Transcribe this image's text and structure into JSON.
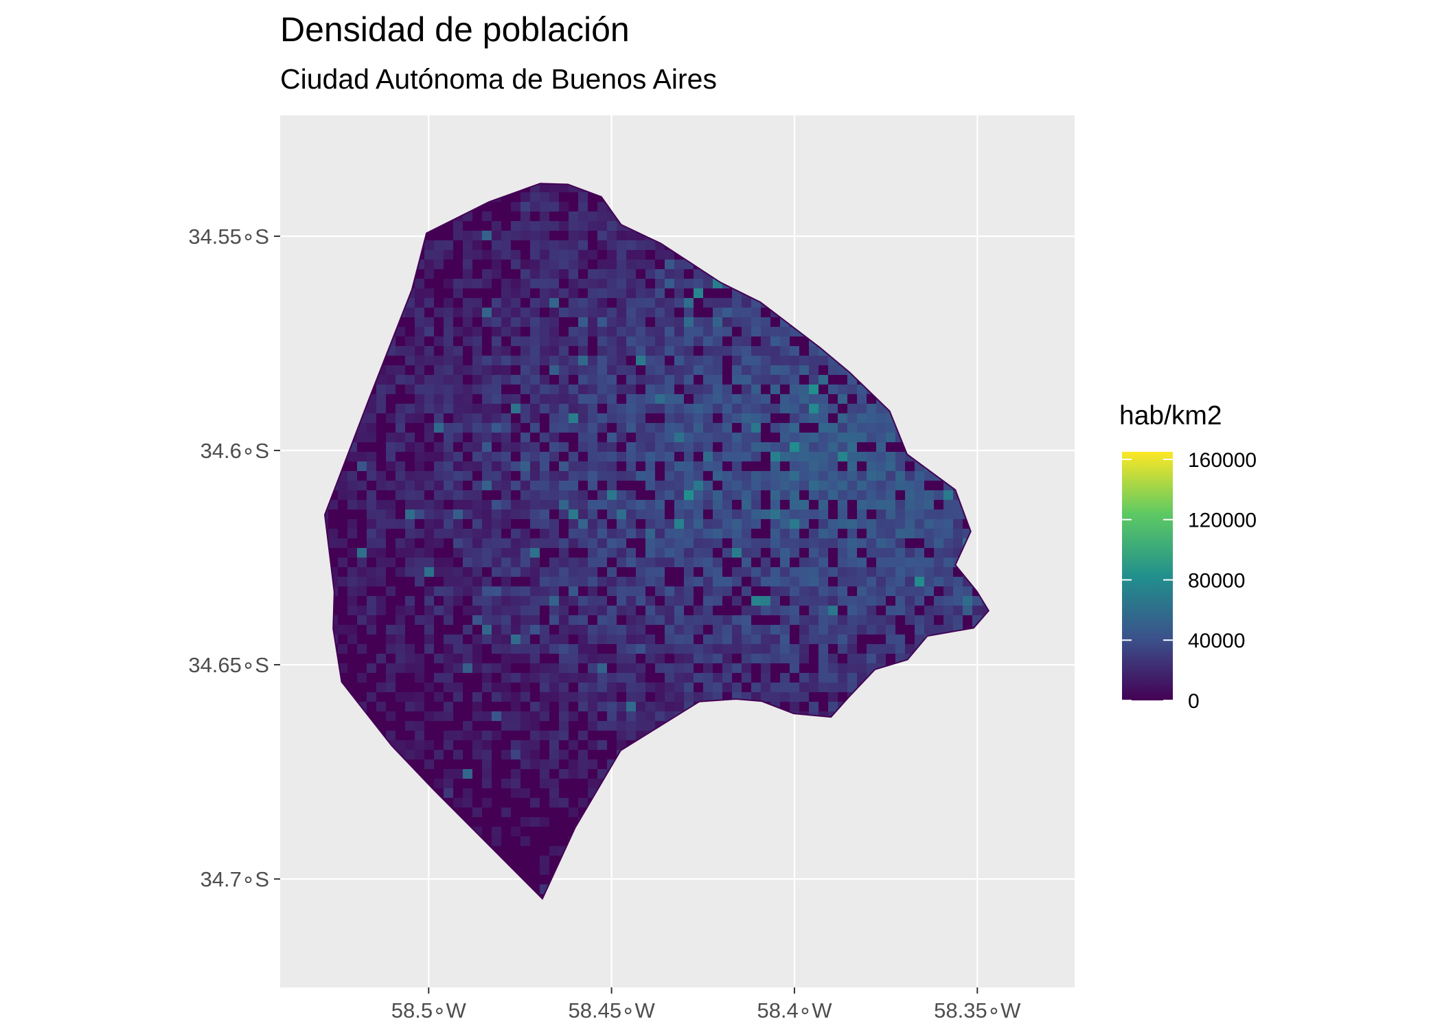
{
  "title": "Densidad de población",
  "subtitle": "Ciudad Autónoma de Buenos Aires",
  "colors": {
    "panel_background": "#ebebeb",
    "gridline": "#ffffff",
    "low_density": "#440154",
    "scale_stops": [
      "#440154",
      "#3b528b",
      "#21908d",
      "#5dc963",
      "#fde725"
    ]
  },
  "chart_data": {
    "type": "heatmap",
    "xlabel": "",
    "ylabel": "",
    "xlim": [
      -58.5406,
      -58.3234
    ],
    "ylim": [
      -34.7253,
      -34.5218
    ],
    "x_ticks": [
      {
        "value": -58.5,
        "label": "58.5∘W"
      },
      {
        "value": -58.45,
        "label": "58.45∘W"
      },
      {
        "value": -58.4,
        "label": "58.4∘W"
      },
      {
        "value": -58.35,
        "label": "58.35∘W"
      }
    ],
    "y_ticks": [
      {
        "value": -34.55,
        "label": "34.55∘S"
      },
      {
        "value": -34.6,
        "label": "34.6∘S"
      },
      {
        "value": -34.65,
        "label": "34.65∘S"
      },
      {
        "value": -34.7,
        "label": "34.7∘S"
      }
    ],
    "grid": true,
    "legend": {
      "title": "hab/km2",
      "position": "right",
      "min": 0,
      "max": 165000,
      "breaks": [
        0,
        40000,
        80000,
        120000,
        160000
      ],
      "break_labels": [
        "0",
        "40000",
        "80000",
        "120000",
        "160000"
      ]
    },
    "outline": [
      [
        -58.4619,
        -34.5379
      ],
      [
        -58.4528,
        -34.5408
      ],
      [
        -58.4474,
        -34.5473
      ],
      [
        -58.4365,
        -34.5517
      ],
      [
        -58.4202,
        -34.5608
      ],
      [
        -58.4093,
        -34.5654
      ],
      [
        -58.393,
        -34.576
      ],
      [
        -58.3849,
        -34.5818
      ],
      [
        -58.374,
        -34.5908
      ],
      [
        -58.3692,
        -34.6009
      ],
      [
        -58.356,
        -34.6092
      ],
      [
        -58.3518,
        -34.6189
      ],
      [
        -58.356,
        -34.6267
      ],
      [
        -58.3501,
        -34.6329
      ],
      [
        -58.3469,
        -34.6374
      ],
      [
        -58.351,
        -34.6414
      ],
      [
        -58.3637,
        -34.6433
      ],
      [
        -58.3691,
        -34.6488
      ],
      [
        -58.378,
        -34.6511
      ],
      [
        -58.3851,
        -34.6575
      ],
      [
        -58.39,
        -34.6622
      ],
      [
        -58.4002,
        -34.6614
      ],
      [
        -58.409,
        -34.6585
      ],
      [
        -58.416,
        -34.658
      ],
      [
        -58.426,
        -34.6586
      ],
      [
        -58.4475,
        -34.67
      ],
      [
        -58.46,
        -34.6881
      ],
      [
        -58.4689,
        -34.7046
      ],
      [
        -58.4988,
        -34.679
      ],
      [
        -58.5101,
        -34.6689
      ],
      [
        -58.5238,
        -34.654
      ],
      [
        -58.5261,
        -34.6416
      ],
      [
        -58.5258,
        -34.633
      ],
      [
        -58.5284,
        -34.615
      ],
      [
        -58.5163,
        -34.588
      ],
      [
        -58.5046,
        -34.5625
      ],
      [
        -58.5006,
        -34.5493
      ],
      [
        -58.4835,
        -34.542
      ],
      [
        -58.4695,
        -34.5377
      ]
    ]
  }
}
